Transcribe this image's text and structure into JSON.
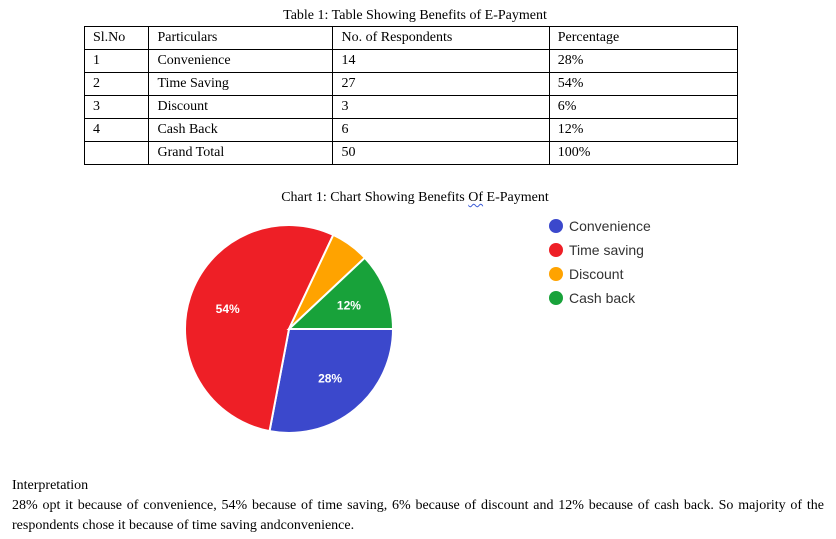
{
  "table": {
    "title": "Table 1: Table Showing Benefits of E-Payment",
    "headers": [
      "Sl.No",
      "Particulars",
      "No. of Respondents",
      "Percentage"
    ],
    "rows": [
      [
        "1",
        "Convenience",
        "14",
        "28%"
      ],
      [
        "2",
        "Time Saving",
        "27",
        "54%"
      ],
      [
        "3",
        "Discount",
        "3",
        "6%"
      ],
      [
        "4",
        "Cash Back",
        "6",
        "12%"
      ],
      [
        "",
        "Grand Total",
        "50",
        "100%"
      ]
    ]
  },
  "chart_title": {
    "before": "Chart 1: Chart Showing Benefits ",
    "squiggle": "Of",
    "after": " E-Payment"
  },
  "chart_data": {
    "type": "pie",
    "categories": [
      "Convenience",
      "Time saving",
      "Discount",
      "Cash back"
    ],
    "values": [
      28,
      54,
      6,
      12
    ],
    "data_labels": [
      "28%",
      "54%",
      "",
      "12%"
    ],
    "colors": [
      "#3b48cc",
      "#ee1f26",
      "#ffa300",
      "#18a23a"
    ],
    "legend_position": "right"
  },
  "interpretation": {
    "heading": "Interpretation",
    "body": "28% opt it because of convenience, 54% because of time saving, 6% because of discount and 12% because of cash back. So majority of the respondents chose it because of time saving andconvenience."
  }
}
